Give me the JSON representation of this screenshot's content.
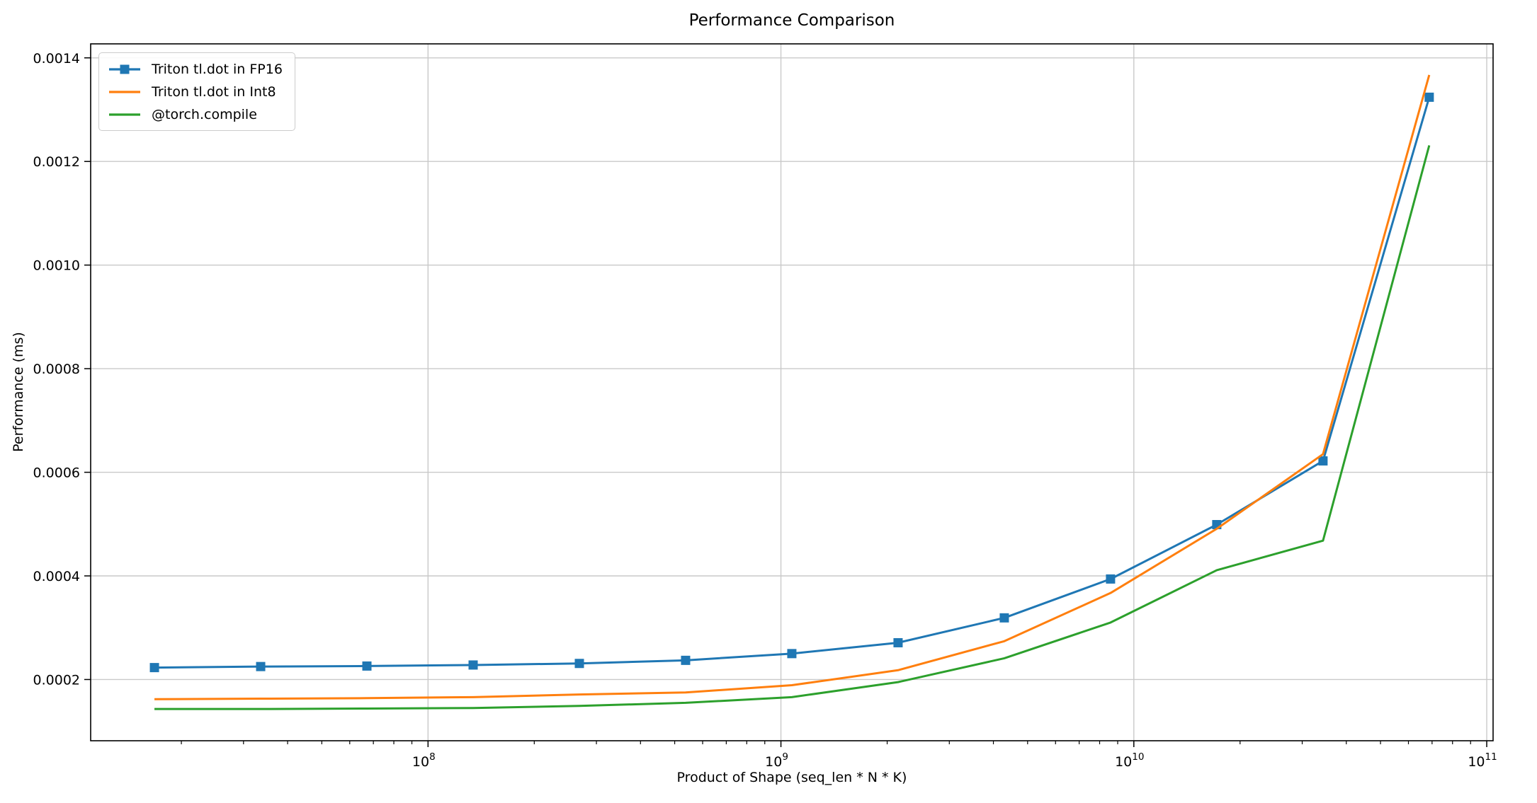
{
  "figure": {
    "title": "Performance Comparison"
  },
  "chart_data": {
    "type": "line",
    "title": "Performance Comparison",
    "xlabel": "Product of Shape (seq_len * N * K)",
    "ylabel": "Performance (ms)",
    "x_scale": "log",
    "grid": true,
    "legend_position": "upper-left",
    "x_axis": {
      "lim_log10": [
        7.044,
        11.018
      ],
      "ticks": [
        {
          "base": "10",
          "exponent": "8",
          "log10": 8
        },
        {
          "base": "10",
          "exponent": "9",
          "log10": 9
        },
        {
          "base": "10",
          "exponent": "10",
          "log10": 10
        },
        {
          "base": "10",
          "exponent": "11",
          "log10": 11
        }
      ]
    },
    "y_axis": {
      "lim": [
        8.18e-05,
        0.001427
      ],
      "ticks": [
        {
          "value": 0.0002,
          "label": "0.0002"
        },
        {
          "value": 0.0004,
          "label": "0.0004"
        },
        {
          "value": 0.0006,
          "label": "0.0006"
        },
        {
          "value": 0.0008,
          "label": "0.0008"
        },
        {
          "value": 0.001,
          "label": "0.0010"
        },
        {
          "value": 0.0012,
          "label": "0.0012"
        },
        {
          "value": 0.0014,
          "label": "0.0014"
        }
      ]
    },
    "x": [
      16777216,
      33554432,
      67108864,
      134217728,
      268435456,
      536870912,
      1073741824,
      2147483648,
      4294967296,
      8589934592,
      17179869184,
      34359738368,
      68719476736
    ],
    "series": [
      {
        "name": "Triton tl.dot in FP16",
        "color": "#1f77b4",
        "marker": "square",
        "values": [
          0.000223,
          0.000225,
          0.000226,
          0.000228,
          0.000231,
          0.000237,
          0.00025,
          0.000271,
          0.000319,
          0.000394,
          0.000499,
          0.000622,
          0.001324
        ]
      },
      {
        "name": "Triton tl.dot in Int8",
        "color": "#ff7f0e",
        "marker": null,
        "values": [
          0.000162,
          0.000163,
          0.000164,
          0.000166,
          0.000171,
          0.000175,
          0.000189,
          0.000218,
          0.000274,
          0.000367,
          0.000491,
          0.000635,
          0.001367
        ]
      },
      {
        "name": "@torch.compile",
        "color": "#2ca02c",
        "marker": null,
        "values": [
          0.000143,
          0.000143,
          0.000144,
          0.000145,
          0.000149,
          0.000155,
          0.000166,
          0.000195,
          0.000241,
          0.00031,
          0.000411,
          0.000468,
          0.001231
        ]
      }
    ],
    "colors": {
      "grid": "#c9c9c9",
      "spine": "#000000",
      "text": "#000000"
    }
  }
}
